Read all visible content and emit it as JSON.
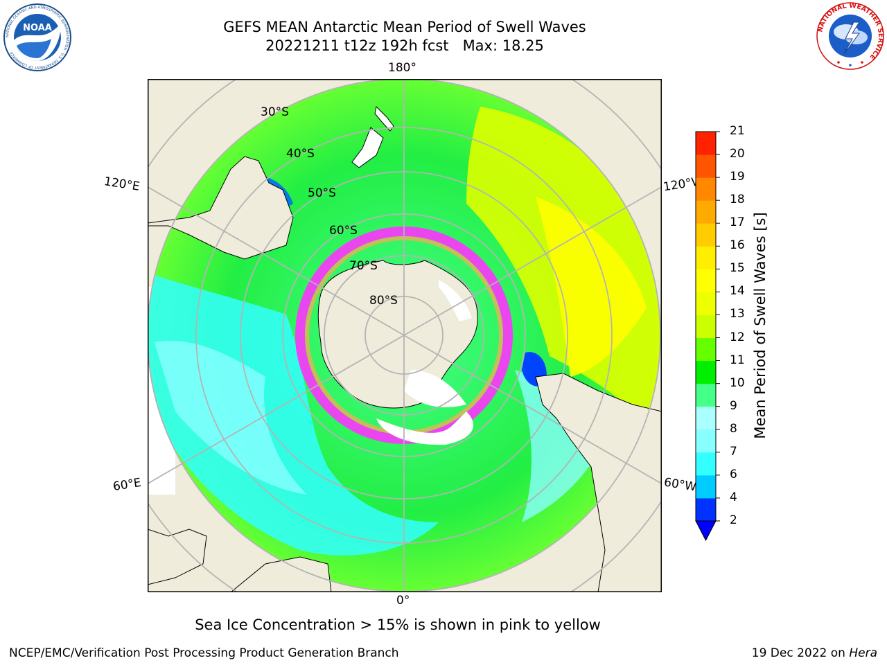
{
  "header": {
    "title": "GEFS MEAN Antarctic Mean Period of Swell Waves",
    "subtitle": "20221211 t12z 192h fcst   Max: 18.25"
  },
  "logos": {
    "noaa": {
      "text": "NOAA",
      "ring_text": "NATIONAL OCEANIC AND ATMOSPHERIC ADMINISTRATION · U.S. DEPARTMENT OF COMMERCE"
    },
    "nws": {
      "ring_text": "NATIONAL WEATHER SERVICE"
    }
  },
  "map": {
    "projection": "south-polar-stereographic",
    "longitude_labels": {
      "top": "180°",
      "bottom": "0°",
      "upper_left": "120°E",
      "upper_right": "120°W",
      "lower_left": "60°E",
      "lower_right": "60°W"
    },
    "latitude_labels": [
      "30°S",
      "40°S",
      "50°S",
      "60°S",
      "70°S",
      "80°S"
    ],
    "colors": {
      "land": "#efecdb",
      "ice_shelf": "#ffffff",
      "sea_ice_edge": "#ff33ff",
      "grid": "#b4b4b4"
    }
  },
  "colorbar": {
    "label": "Mean Period of Swell Waves [s]",
    "ticks": [
      "2",
      "4",
      "6",
      "7",
      "8",
      "9",
      "10",
      "11",
      "12",
      "13",
      "14",
      "15",
      "16",
      "17",
      "18",
      "19",
      "20",
      "21"
    ],
    "colors": [
      "#0033ff",
      "#00ccff",
      "#33ffff",
      "#88ffff",
      "#aaffff",
      "#44ff88",
      "#00ee00",
      "#66ff00",
      "#ccff00",
      "#eeff00",
      "#ffff00",
      "#ffee00",
      "#ffcc00",
      "#ffaa00",
      "#ff8800",
      "#ff5500",
      "#ff2200",
      "#ff0000"
    ],
    "extend_color": "#0000ff"
  },
  "footer": {
    "caption": "Sea Ice Concentration > 15% is shown in pink to yellow",
    "left": "NCEP/EMC/Verification Post Processing Product Generation Branch",
    "right_prefix": "19 Dec 2022 on ",
    "right_host": "Hera"
  }
}
